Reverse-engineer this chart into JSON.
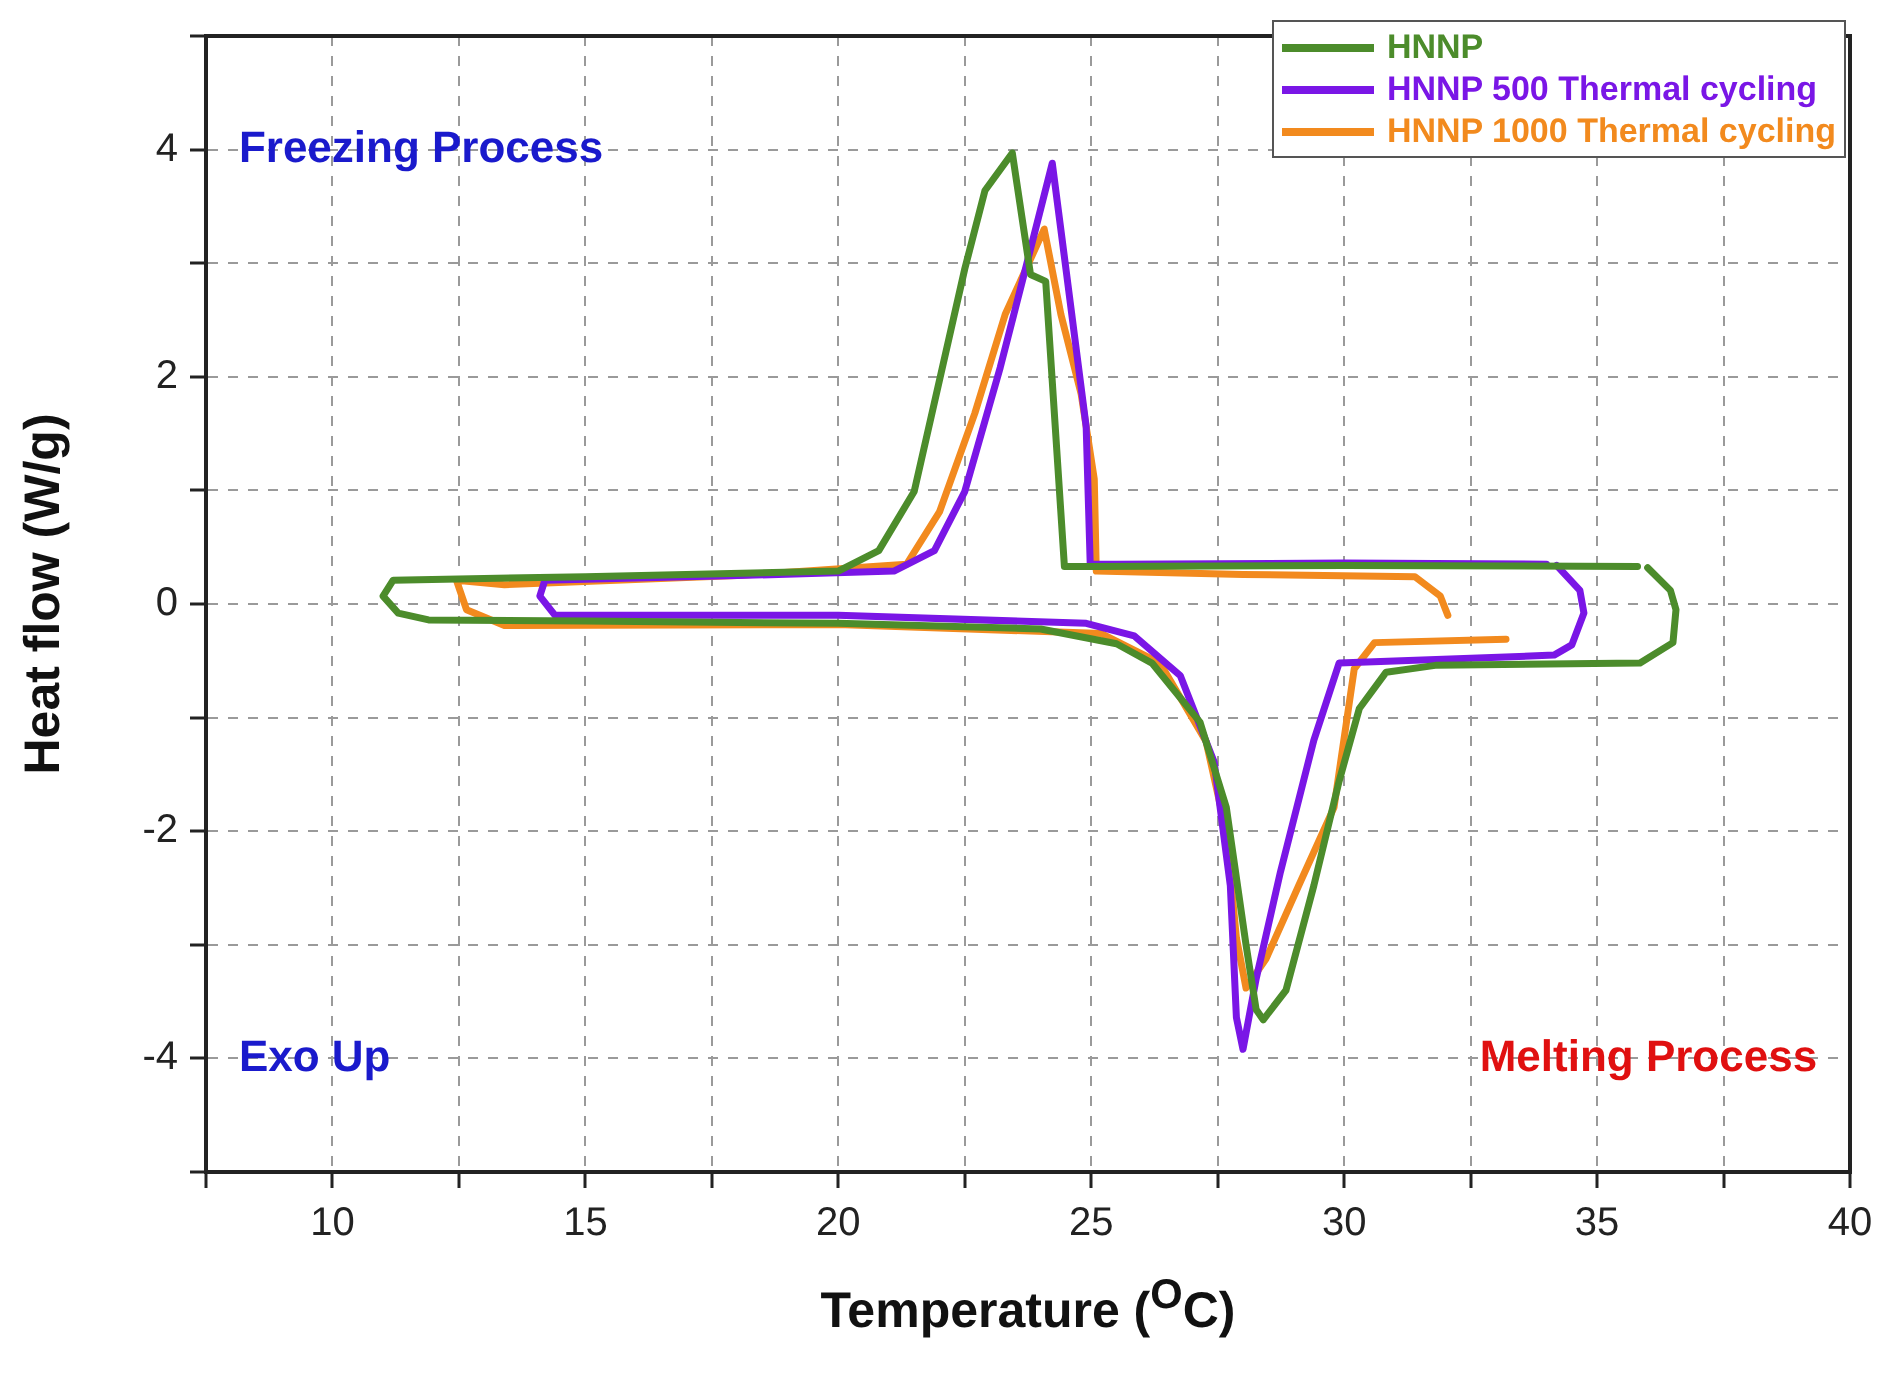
{
  "chart_data": {
    "type": "line",
    "xlabel": "Temperature ($^{O}$C)",
    "ylabel": "Heat flow (W/g)",
    "xlim": [
      7.5,
      40
    ],
    "ylim": [
      -5,
      5
    ],
    "xticks": [
      {
        "value": 7.5,
        "label": null
      },
      10,
      {
        "value": 12.5,
        "label": null
      },
      15,
      {
        "value": 17.5,
        "label": null
      },
      20,
      {
        "value": 22.5,
        "label": null
      },
      25,
      {
        "value": 27.5,
        "label": null
      },
      30,
      {
        "value": 32.5,
        "label": null
      },
      35,
      {
        "value": 37.5,
        "label": null
      },
      40
    ],
    "yticks": [
      {
        "value": -5,
        "label": null
      },
      -4,
      {
        "value": -3,
        "label": null
      },
      -2,
      {
        "value": -1,
        "label": null
      },
      0,
      {
        "value": 1,
        "label": null
      },
      2,
      {
        "value": 3,
        "label": null
      },
      4,
      {
        "value": 5,
        "label": null
      }
    ],
    "grid": true,
    "legend": "top right",
    "marker": "none",
    "line_style": "solid",
    "annotations": [
      "Freezing Process",
      "Exo Up",
      "Melting Process"
    ],
    "series": [
      {
        "name": "HNNP",
        "color": "#4c8c2b",
        "x": [
          35.8,
          30,
          25,
          24.47,
          24.1,
          23.8,
          23.44,
          22.9,
          22.5,
          22.0,
          21.5,
          20.8,
          20.0,
          15,
          11.2,
          11.0,
          11.3,
          11.9,
          15,
          20,
          24,
          25.5,
          26.2,
          27.15,
          27.67,
          28.06,
          28.26,
          28.4,
          28.85,
          29.4,
          29.9,
          30.3,
          30.83,
          31.8,
          35.85,
          36.5,
          36.56,
          36.45,
          36.0
        ],
        "values": [
          0.33,
          0.34,
          0.33,
          0.33,
          2.84,
          2.9,
          3.97,
          3.64,
          2.95,
          1.97,
          0.99,
          0.47,
          0.29,
          0.24,
          0.21,
          0.07,
          -0.08,
          -0.14,
          -0.15,
          -0.17,
          -0.22,
          -0.35,
          -0.52,
          -1.04,
          -1.79,
          -3.0,
          -3.57,
          -3.66,
          -3.4,
          -2.48,
          -1.56,
          -0.92,
          -0.6,
          -0.54,
          -0.52,
          -0.34,
          -0.05,
          0.12,
          0.32
        ]
      },
      {
        "name": "HNNP 500 Thermal cycling",
        "color": "#7a16e6",
        "x": [
          34.0,
          30,
          25.5,
          24.98,
          24.9,
          24.5,
          24.23,
          23.7,
          23.2,
          22.5,
          21.9,
          21.1,
          18,
          14.2,
          14.1,
          14.4,
          20,
          24.9,
          25.85,
          26.76,
          27.43,
          27.75,
          27.87,
          28.0,
          28.26,
          28.74,
          29.4,
          29.9,
          34.15,
          34.5,
          34.74,
          34.66,
          34.2
        ],
        "values": [
          0.35,
          0.36,
          0.35,
          0.35,
          1.56,
          2.95,
          3.88,
          2.95,
          2.08,
          0.99,
          0.47,
          0.29,
          0.25,
          0.21,
          0.07,
          -0.1,
          -0.1,
          -0.17,
          -0.28,
          -0.63,
          -1.39,
          -2.48,
          -3.64,
          -3.92,
          -3.3,
          -2.36,
          -1.2,
          -0.52,
          -0.45,
          -0.36,
          -0.08,
          0.12,
          0.34
        ]
      },
      {
        "name": "HNNP 1000 Thermal cycling",
        "color": "#f28a1e",
        "x": [
          32.05,
          31.9,
          31.4,
          28,
          25.1,
          25.06,
          24.8,
          24.4,
          24.07,
          23.3,
          22.7,
          22.0,
          21.35,
          18,
          13.4,
          12.45,
          12.65,
          13.4,
          20,
          25.2,
          26.36,
          27.27,
          27.67,
          27.87,
          28.06,
          28.46,
          29.1,
          29.8,
          30.2,
          30.6,
          33.2
        ],
        "values": [
          -0.1,
          0.07,
          0.24,
          0.26,
          0.29,
          1.1,
          1.85,
          2.55,
          3.3,
          2.55,
          1.68,
          0.81,
          0.35,
          0.25,
          0.17,
          0.21,
          -0.05,
          -0.19,
          -0.18,
          -0.26,
          -0.52,
          -1.21,
          -2.01,
          -2.94,
          -3.38,
          -3.12,
          -2.48,
          -1.79,
          -0.57,
          -0.34,
          -0.31
        ]
      }
    ]
  }
}
